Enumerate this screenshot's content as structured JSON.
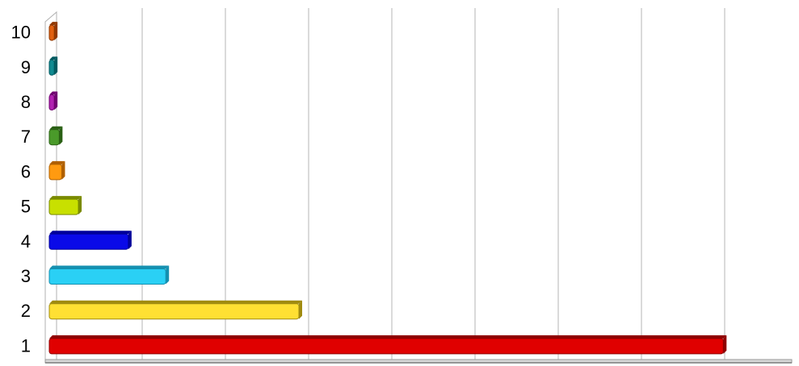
{
  "chart_data": {
    "type": "bar",
    "orientation": "horizontal",
    "style": "3d",
    "title": "",
    "xlabel": "",
    "ylabel": "",
    "grid": "vertical",
    "legend": "none",
    "categories": [
      "1",
      "2",
      "3",
      "4",
      "5",
      "6",
      "7",
      "8",
      "9",
      "10"
    ],
    "series": [
      {
        "values": [
          81,
          30,
          14,
          9.5,
          3.5,
          1.5,
          1.2,
          0.6,
          0.6,
          0.6
        ]
      }
    ],
    "xlim": [
      0,
      90
    ],
    "bar_colors": [
      {
        "face": "#e00000",
        "shade": "#8f0000"
      },
      {
        "face": "#ffe033",
        "shade": "#a08b10"
      },
      {
        "face": "#2ad0f5",
        "shade": "#1590b0"
      },
      {
        "face": "#0a0ae8",
        "shade": "#00009a"
      },
      {
        "face": "#c8e000",
        "shade": "#7a8a00"
      },
      {
        "face": "#ff9a10",
        "shade": "#b06000"
      },
      {
        "face": "#4a9a2a",
        "shade": "#2a6014"
      },
      {
        "face": "#b020b0",
        "shade": "#700070"
      },
      {
        "face": "#108a90",
        "shade": "#005a60"
      },
      {
        "face": "#e06010",
        "shade": "#903800"
      }
    ]
  }
}
